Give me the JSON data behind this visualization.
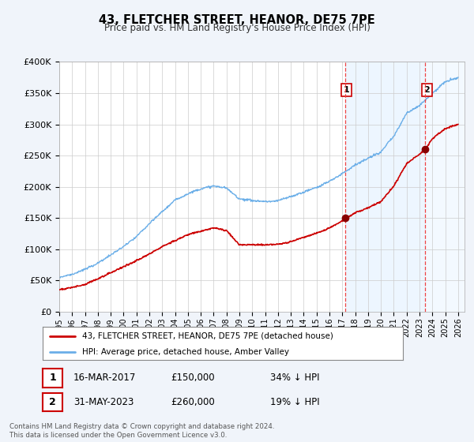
{
  "title": "43, FLETCHER STREET, HEANOR, DE75 7PE",
  "subtitle": "Price paid vs. HM Land Registry's House Price Index (HPI)",
  "ylim": [
    0,
    400000
  ],
  "xlim_start": 1995.0,
  "xlim_end": 2026.5,
  "hpi_color": "#6aaee8",
  "hpi_fill": "#ddeeff",
  "price_color": "#cc0000",
  "dashed_color": "#ee4444",
  "legend_line1": "43, FLETCHER STREET, HEANOR, DE75 7PE (detached house)",
  "legend_line2": "HPI: Average price, detached house, Amber Valley",
  "annotation1_date": "16-MAR-2017",
  "annotation1_price": "£150,000",
  "annotation1_pct": "34% ↓ HPI",
  "annotation2_date": "31-MAY-2023",
  "annotation2_price": "£260,000",
  "annotation2_pct": "19% ↓ HPI",
  "footnote": "Contains HM Land Registry data © Crown copyright and database right 2024.\nThis data is licensed under the Open Government Licence v3.0.",
  "sale1_x": 2017.21,
  "sale1_y": 150000,
  "sale2_x": 2023.42,
  "sale2_y": 260000,
  "bg_color": "#f0f4fa",
  "plot_bg": "#ffffff"
}
